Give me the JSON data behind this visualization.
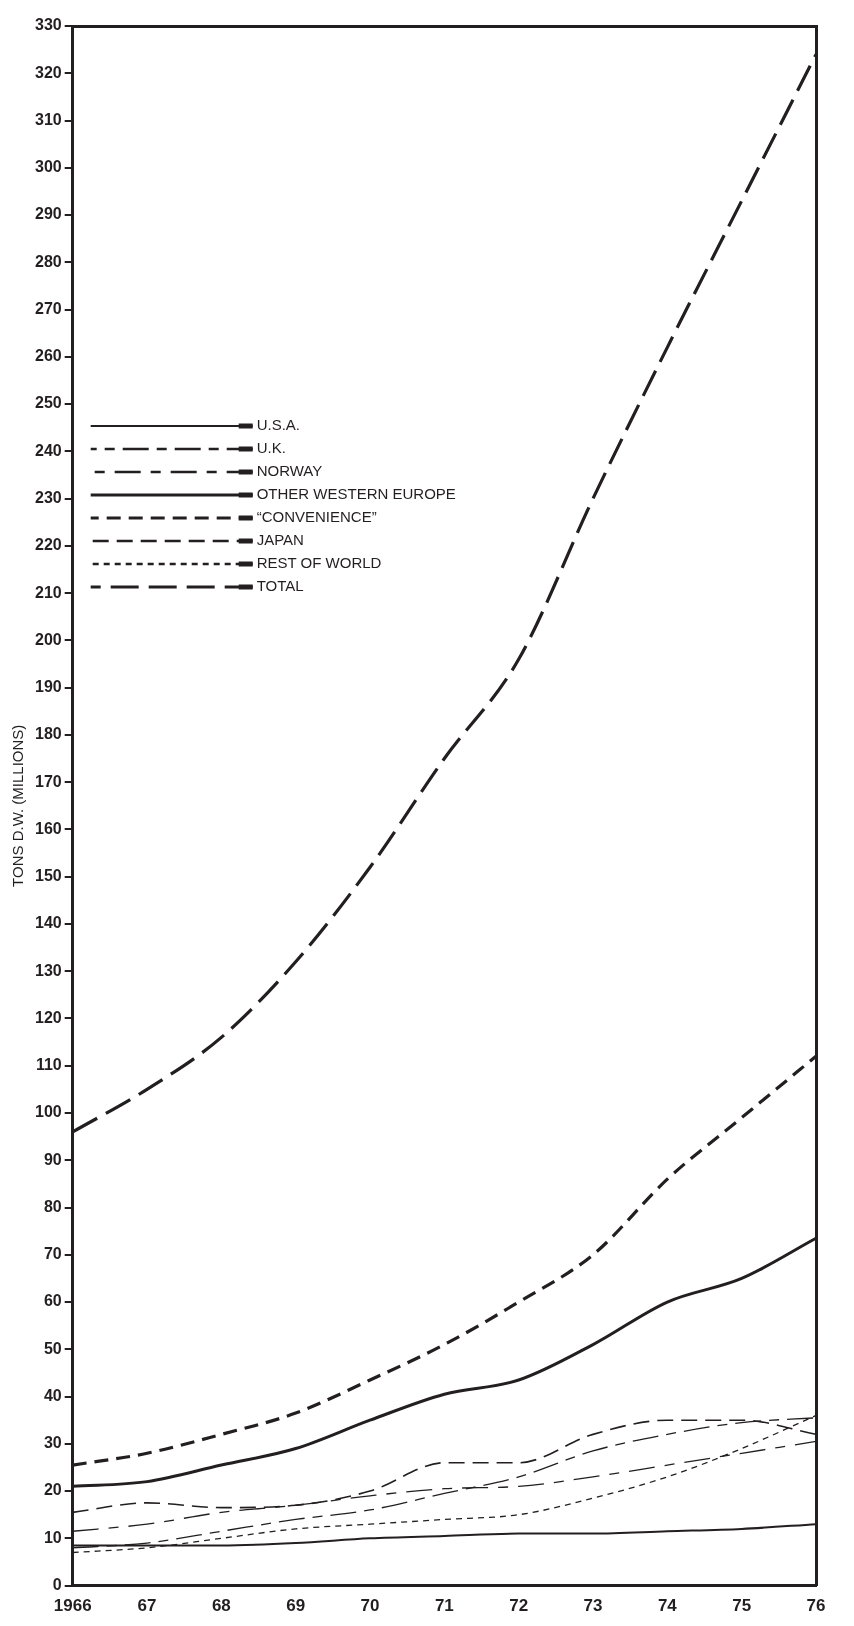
{
  "chart_data": {
    "type": "line",
    "ylabel": "TONS D.W. (MILLIONS)",
    "categories": [
      "1966",
      "67",
      "68",
      "69",
      "70",
      "71",
      "72",
      "73",
      "74",
      "75",
      "76"
    ],
    "ylim": [
      0,
      330
    ],
    "yticks": [
      0,
      10,
      20,
      30,
      40,
      50,
      60,
      70,
      80,
      90,
      100,
      110,
      120,
      130,
      140,
      150,
      160,
      170,
      180,
      190,
      200,
      210,
      220,
      230,
      240,
      250,
      260,
      270,
      280,
      290,
      300,
      310,
      320,
      330
    ],
    "grid": false,
    "legend": "top left",
    "marker": "none",
    "series": [
      {
        "name": "U.S.A.",
        "color": "#231f20",
        "line_style": "solid",
        "values": [
          8.5,
          8.5,
          8.5,
          9,
          10,
          10.5,
          11,
          11,
          11.5,
          12,
          13
        ]
      },
      {
        "name": "U.K.",
        "color": "#231f20",
        "line_style": "dashed",
        "values": [
          8,
          9,
          11.5,
          14,
          16,
          19.5,
          23,
          28.5,
          32,
          34.5,
          35.5
        ]
      },
      {
        "name": "NORWAY",
        "color": "#231f20",
        "line_style": "dashed",
        "values": [
          11.5,
          13,
          15.5,
          17,
          19,
          20.5,
          21,
          23,
          25.5,
          28,
          30.5
        ]
      },
      {
        "name": "OTHER WESTERN EUROPE",
        "color": "#231f20",
        "line_style": "solid",
        "values": [
          21,
          22,
          25.5,
          29,
          35,
          40.5,
          43.5,
          51,
          60,
          65,
          73.5
        ]
      },
      {
        "name": "“CONVENIENCE”",
        "color": "#231f20",
        "line_style": "dashed",
        "values": [
          25.5,
          28,
          32,
          36.5,
          43.5,
          51,
          60,
          70,
          86,
          99,
          112
        ]
      },
      {
        "name": "JAPAN",
        "color": "#231f20",
        "line_style": "dashed",
        "values": [
          15.5,
          17.5,
          16.5,
          17,
          20,
          26,
          26,
          32,
          35,
          35,
          32
        ]
      },
      {
        "name": "REST OF WORLD",
        "color": "#231f20",
        "line_style": "dotted",
        "values": [
          7,
          8,
          10,
          12,
          13,
          14,
          15,
          18.5,
          23,
          29,
          36
        ]
      },
      {
        "name": "TOTAL",
        "color": "#231f20",
        "line_style": "dashed",
        "values": [
          96,
          105,
          116,
          132,
          152,
          175,
          196,
          230,
          262,
          293,
          324
        ]
      }
    ]
  }
}
